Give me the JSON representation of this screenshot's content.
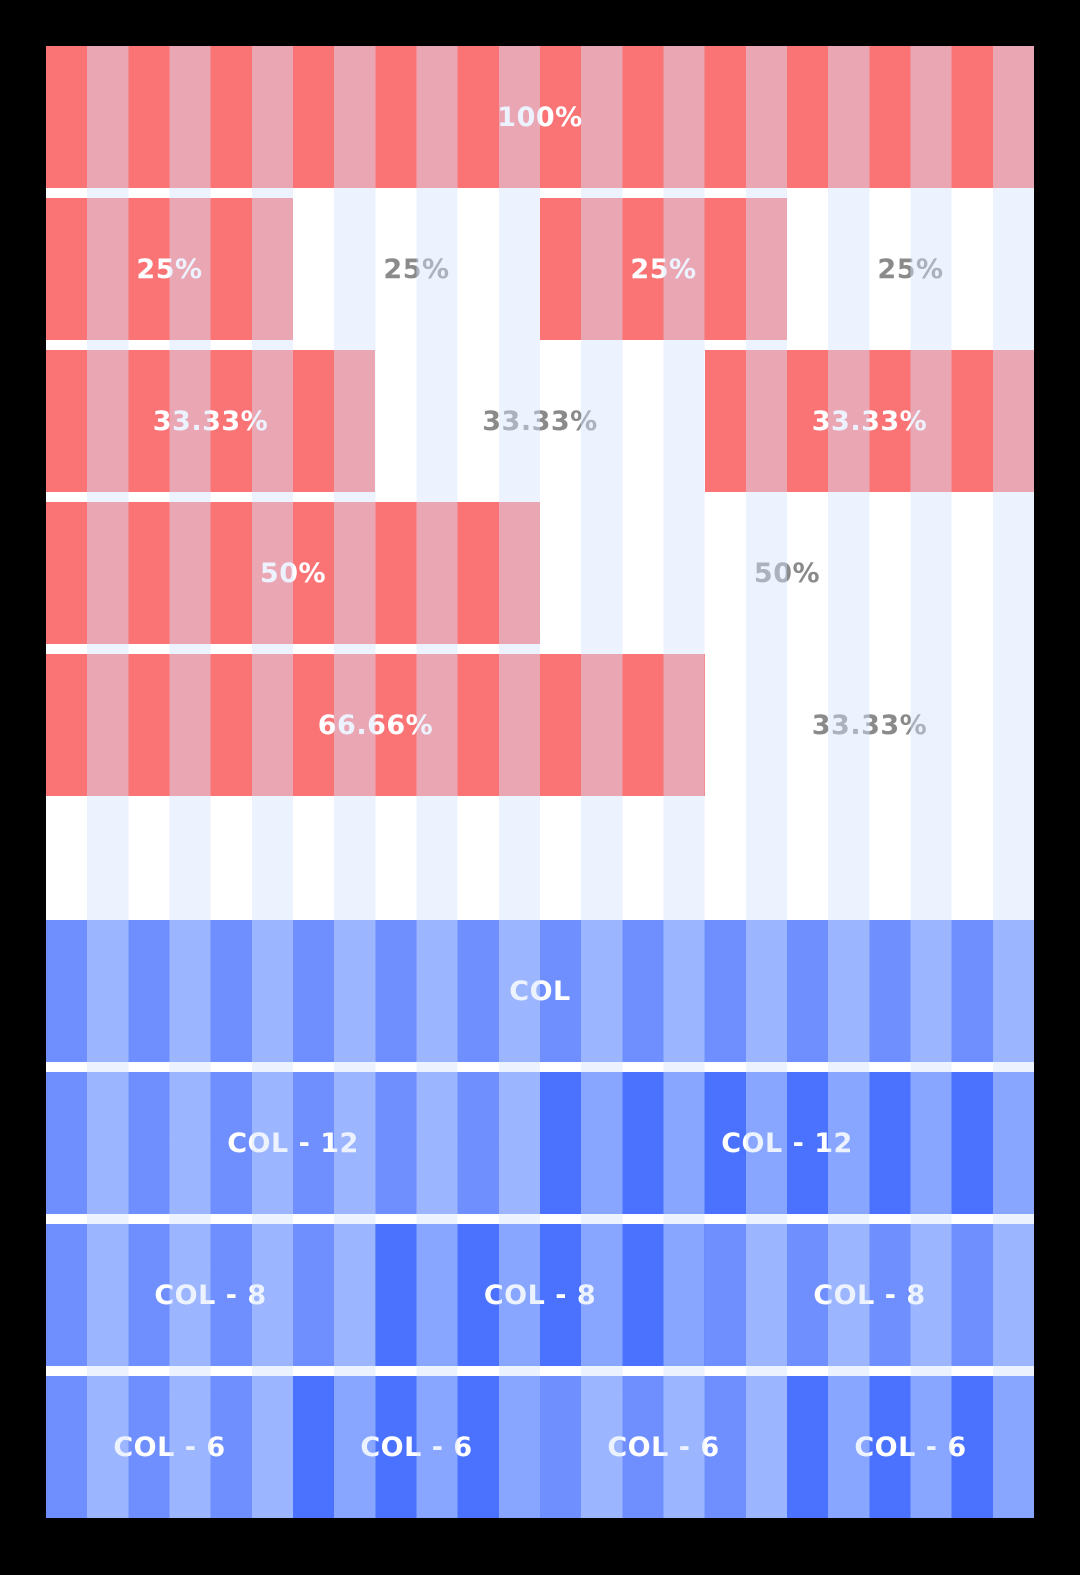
{
  "percent_rows": [
    {
      "cells": [
        "100%"
      ]
    },
    {
      "cells": [
        "25%",
        "25%",
        "25%",
        "25%"
      ]
    },
    {
      "cells": [
        "33.33%",
        "33.33%",
        "33.33%"
      ]
    },
    {
      "cells": [
        "50%",
        "50%"
      ]
    },
    {
      "cells": [
        "66.66%",
        "33.33%"
      ]
    }
  ],
  "col_rows": [
    {
      "cells": [
        "COL"
      ]
    },
    {
      "cells": [
        "COL - 12",
        "COL - 12"
      ]
    },
    {
      "cells": [
        "COL - 8",
        "COL - 8",
        "COL - 8"
      ]
    },
    {
      "cells": [
        "COL - 6",
        "COL - 6",
        "COL - 6",
        "COL - 6"
      ]
    }
  ],
  "colors": {
    "background": "#000000",
    "board": "#ffffff",
    "stripe": "#d4e4ff",
    "red_block": "#fb7475",
    "blue_light": "#6f8fff",
    "blue_dark": "#4a72ff",
    "blank_text": "#8a8a8a"
  }
}
